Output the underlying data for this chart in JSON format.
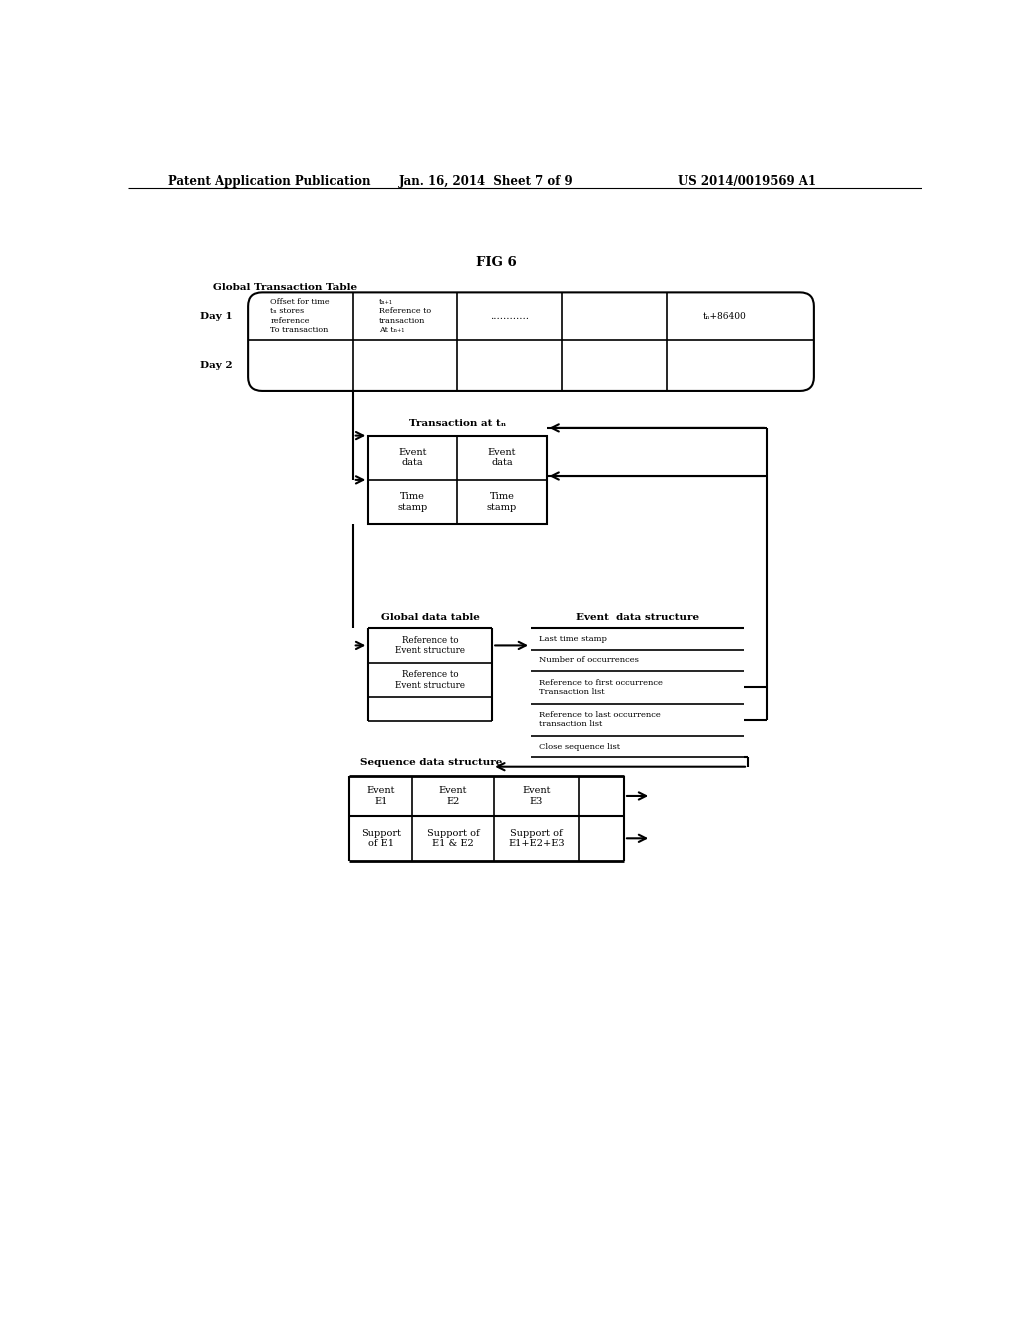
{
  "bg_color": "#ffffff",
  "header_text": "Patent Application Publication",
  "header_date": "Jan. 16, 2014  Sheet 7 of 9",
  "header_patent": "US 2014/0019569 A1",
  "fig_label": "FIG 6",
  "global_table_label": "Global Transaction Table",
  "day1_label": "Day 1",
  "day2_label": "Day 2",
  "cell1_text": "Offset for time\ntₙ stores\nreference\nTo transaction",
  "cell2_text": "tₙ₊₁\nReference to\ntransaction\nAt tₙ₊₁",
  "cell3_text": "............",
  "cell5_text": "tₙ+86400",
  "transaction_label": "Transaction at tₙ",
  "event_data1": "Event\ndata",
  "event_data2": "Event\ndata",
  "time_stamp1": "Time\nstamp",
  "time_stamp2": "Time\nstamp",
  "global_data_label": "Global data table",
  "ref1_text": "Reference to\nEvent structure",
  "ref2_text": "Reference to\nEvent structure",
  "event_struct_label": "Event  data structure",
  "last_ts": "Last time stamp",
  "num_occur": "Number of occurrences",
  "ref_first": "Reference to first occurrence\nTransaction list",
  "ref_last": "Reference to last occurrence\ntransaction list",
  "close_seq": "Close sequence list",
  "seq_data_label": "Sequence data structure",
  "seq_row1": [
    "Event\nE1",
    "Event\nE2",
    "Event\nE3"
  ],
  "seq_row2": [
    "Support\nof E1",
    "Support of\nE1 & E2",
    "Support of\nE1+E2+E3"
  ]
}
